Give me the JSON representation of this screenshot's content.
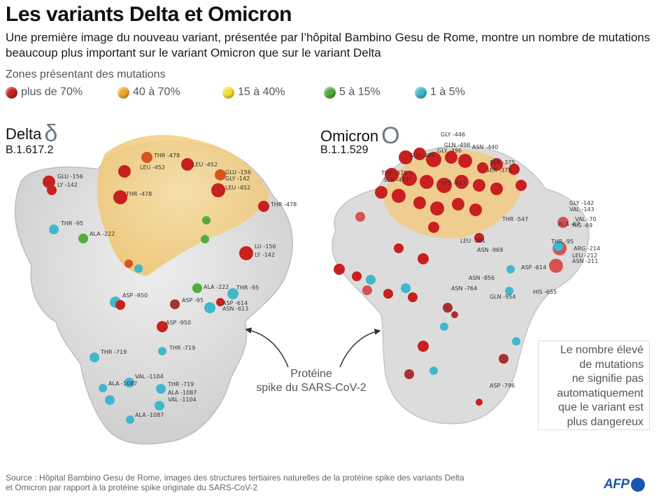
{
  "header": {
    "title": "Les variants Delta et Omicron",
    "subtitle": "Une première image du nouveau variant, présentée par l’hôpital Bambino Gesu de Rome, montre un nombre de mutations beaucoup plus important sur le variant Omicron que sur le variant Delta"
  },
  "legend": {
    "title": "Zones présentant des mutations",
    "items": [
      {
        "label": "plus de 70%",
        "color": "#c8201e"
      },
      {
        "label": "40 à 70%",
        "color": "#f0a82a"
      },
      {
        "label": "15 à 40%",
        "color": "#f2e12c"
      },
      {
        "label": "5 à 15%",
        "color": "#4fae3a"
      },
      {
        "label": "1 à 5%",
        "color": "#3fb8cc"
      }
    ]
  },
  "delta": {
    "name": "Delta",
    "symbol": "δ",
    "code": "B.1.617.2",
    "labels": [
      "THR -478",
      "LEU -452",
      "LEU -452",
      "GLU -156",
      "GLY -142",
      "LEU -452",
      "GLU -156",
      "LY -142",
      "THR -478",
      "THR -478",
      "THR -95",
      "ALA -222",
      "LU -156",
      "LY -142",
      "ALA -222",
      "THR -95",
      "ASP -950",
      "ASP -95",
      "ASP -614",
      "ASN -613",
      "ASP -950",
      "THR -719",
      "THR -719",
      "VAL -1104",
      "ALA -1087",
      "THR -719",
      "ALA -1087",
      "VAL -1104",
      "ALA -1087"
    ]
  },
  "omicron": {
    "name": "Omicron",
    "symbol": "O",
    "code": "B.1.1.529",
    "labels": [
      "GLY -446",
      "GLN -498",
      "GLY -496",
      "ASN -440",
      "GLU -484",
      "SER -375",
      "SER -373",
      "THR -478",
      "SER -477",
      "LYS -417",
      "GLY -142",
      "VAL -143",
      "VAL -70",
      "ALA -67",
      "HIS -69",
      "THR -547",
      "THR -95",
      "ARG -214",
      "LEU -212",
      "ASN -211",
      "LEU -981",
      "ASN -969",
      "ASP -614",
      "ASN -856",
      "ASN -764",
      "GLN -954",
      "HIS -655",
      "ASP -796"
    ]
  },
  "caption": {
    "line1": "Protéine",
    "line2": "spike du SARS-CoV-2"
  },
  "note": {
    "lines": [
      "Le nombre élevé",
      "de mutations",
      "ne signifie pas",
      "automatiquement",
      "que le variant est",
      "plus dangereux"
    ]
  },
  "footer": {
    "source_line1": "Source : Hôpital Bambino Gesu de Rome, images des structures tertiaires naturelles de la protéine spike des variants Delta",
    "source_line2": "et Omicron par rapport à la protéine spike originale du SARS-CoV-2",
    "logo": "AFP"
  }
}
